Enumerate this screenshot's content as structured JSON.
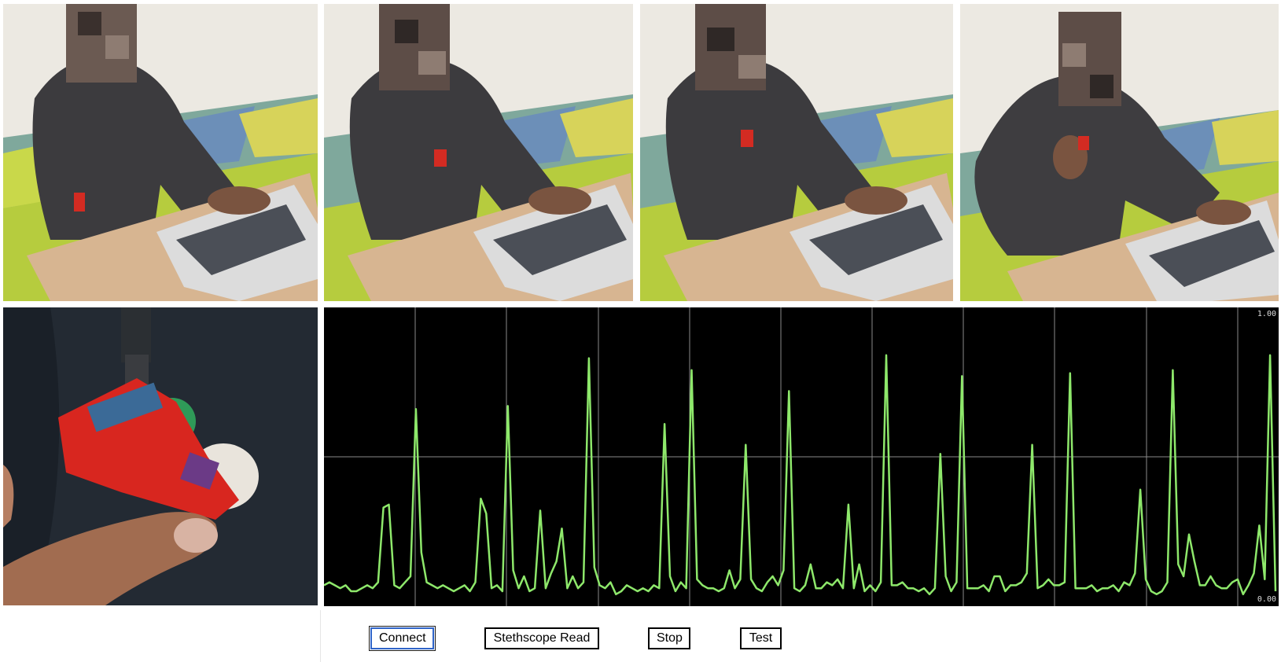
{
  "photos": [
    {
      "name": "user-typing-photo-1"
    },
    {
      "name": "user-typing-photo-2"
    },
    {
      "name": "user-typing-photo-3"
    },
    {
      "name": "user-pointing-photo-4"
    },
    {
      "name": "device-closeup-photo"
    }
  ],
  "monitor": {
    "scale_max": "1.00",
    "scale_min": "0.00",
    "trace_color": "#8ee86b",
    "grid_color": "#8a8a8a",
    "background": "#000000"
  },
  "chart_data": {
    "type": "line",
    "ylim": [
      0,
      1
    ],
    "y": [
      0.07,
      0.08,
      0.07,
      0.06,
      0.07,
      0.05,
      0.05,
      0.06,
      0.07,
      0.06,
      0.08,
      0.33,
      0.34,
      0.07,
      0.06,
      0.08,
      0.1,
      0.66,
      0.18,
      0.08,
      0.07,
      0.06,
      0.07,
      0.06,
      0.05,
      0.06,
      0.07,
      0.05,
      0.08,
      0.36,
      0.31,
      0.06,
      0.07,
      0.05,
      0.67,
      0.12,
      0.06,
      0.1,
      0.05,
      0.06,
      0.32,
      0.06,
      0.11,
      0.15,
      0.26,
      0.06,
      0.1,
      0.06,
      0.08,
      0.83,
      0.13,
      0.07,
      0.06,
      0.08,
      0.04,
      0.05,
      0.07,
      0.06,
      0.05,
      0.06,
      0.05,
      0.07,
      0.06,
      0.61,
      0.1,
      0.05,
      0.08,
      0.06,
      0.79,
      0.09,
      0.07,
      0.06,
      0.06,
      0.05,
      0.06,
      0.12,
      0.06,
      0.09,
      0.54,
      0.09,
      0.06,
      0.05,
      0.08,
      0.1,
      0.07,
      0.12,
      0.72,
      0.06,
      0.05,
      0.07,
      0.14,
      0.06,
      0.06,
      0.08,
      0.07,
      0.09,
      0.06,
      0.34,
      0.06,
      0.14,
      0.05,
      0.07,
      0.05,
      0.08,
      0.84,
      0.07,
      0.07,
      0.08,
      0.06,
      0.06,
      0.05,
      0.06,
      0.04,
      0.06,
      0.51,
      0.1,
      0.05,
      0.08,
      0.77,
      0.06,
      0.06,
      0.06,
      0.07,
      0.05,
      0.1,
      0.1,
      0.05,
      0.07,
      0.07,
      0.08,
      0.11,
      0.54,
      0.06,
      0.07,
      0.09,
      0.07,
      0.07,
      0.08,
      0.78,
      0.06,
      0.06,
      0.06,
      0.07,
      0.05,
      0.06,
      0.06,
      0.07,
      0.05,
      0.08,
      0.07,
      0.11,
      0.39,
      0.09,
      0.05,
      0.04,
      0.05,
      0.08,
      0.79,
      0.14,
      0.1,
      0.24,
      0.15,
      0.07,
      0.07,
      0.1,
      0.07,
      0.06,
      0.06,
      0.08,
      0.09,
      0.04,
      0.07,
      0.11,
      0.27,
      0.09,
      0.84,
      0.05
    ]
  },
  "controls": {
    "connect": "Connect",
    "stethoscope_read": "Stethscope Read",
    "stop": "Stop",
    "test": "Test"
  }
}
